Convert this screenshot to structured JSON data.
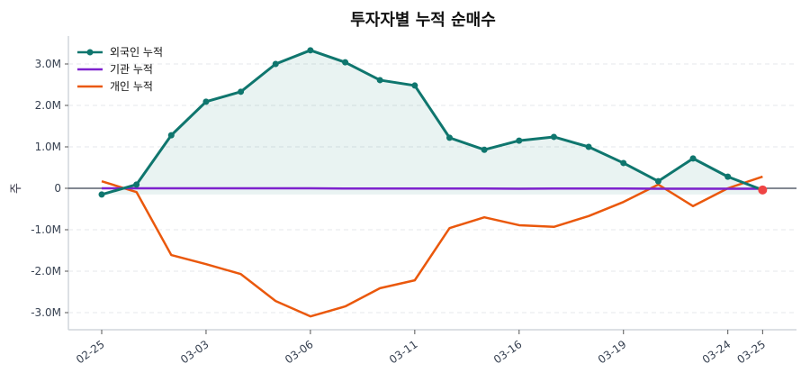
{
  "chart_data": {
    "type": "line",
    "title": "투자자별 누적 순매수",
    "ylabel": "주",
    "xlabel": "",
    "categories": [
      "02-25",
      "",
      "",
      "03-03",
      "",
      "",
      "03-06",
      "",
      "",
      "03-11",
      "",
      "",
      "03-16",
      "",
      "",
      "03-19",
      "",
      "",
      "03-24",
      "03-25"
    ],
    "x_tick_labels": [
      "02-25",
      "03-03",
      "03-06",
      "03-11",
      "03-16",
      "03-19",
      "03-24",
      "03-25"
    ],
    "y_ticks": [
      -3000000,
      -2000000,
      -1000000,
      0,
      1000000,
      2000000,
      3000000
    ],
    "y_tick_labels": [
      "-3.0M",
      "-2.0M",
      "-1.0M",
      "0",
      "1.0M",
      "2.0M",
      "3.0M"
    ],
    "ylim": [
      -3400000,
      3650000
    ],
    "grid": true,
    "legend_position": "top-left",
    "series": [
      {
        "name": "외국인 누적",
        "color": "#0f766e",
        "markers": true,
        "fill": true,
        "values": [
          -150000,
          90000,
          1280000,
          2090000,
          2330000,
          3000000,
          3330000,
          3040000,
          2610000,
          2480000,
          1220000,
          930000,
          1150000,
          1240000,
          1000000,
          610000,
          170000,
          720000,
          280000,
          -40000
        ]
      },
      {
        "name": "기관 누적",
        "color": "#7e22ce",
        "markers": false,
        "values": [
          0,
          0,
          0,
          0,
          0,
          0,
          0,
          -5000,
          -5000,
          -5000,
          -5000,
          -5000,
          -10000,
          -5000,
          -5000,
          -5000,
          -10000,
          -10000,
          -10000,
          -10000
        ]
      },
      {
        "name": "개인 누적",
        "color": "#ea580c",
        "markers": false,
        "values": [
          170000,
          -90000,
          -1610000,
          -1830000,
          -2070000,
          -2720000,
          -3090000,
          -2850000,
          -2410000,
          -2220000,
          -960000,
          -700000,
          -890000,
          -930000,
          -670000,
          -330000,
          90000,
          -430000,
          0,
          280000
        ]
      }
    ],
    "last_point_highlight_color": "#ef4444"
  }
}
